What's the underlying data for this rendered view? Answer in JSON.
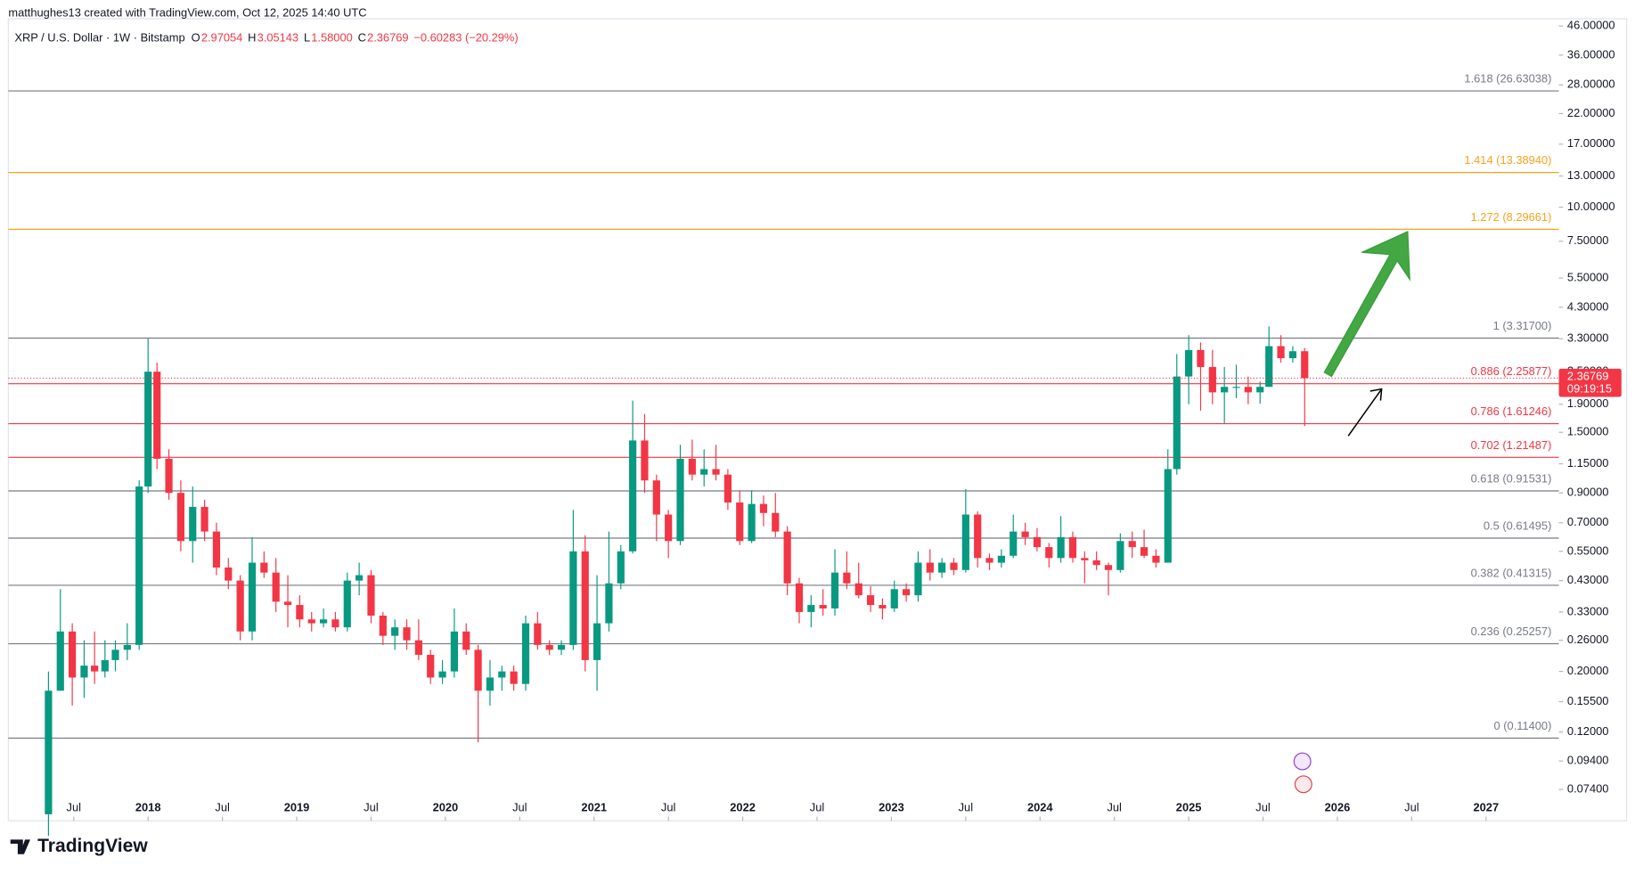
{
  "chart_data": {
    "type": "candlestick",
    "header": "matthughes13 created with TradingView.com, Oct 12, 2025 14:40 UTC",
    "symbol": "XRP / U.S. Dollar · 1W · Bitstamp",
    "ohlc": [
      {
        "key": "O",
        "text": "2.97054"
      },
      {
        "key": "H",
        "text": "3.05143"
      },
      {
        "key": "L",
        "text": "1.58000"
      },
      {
        "key": "C",
        "text": "2.36769"
      }
    ],
    "change": "−0.60283 (−20.29%)",
    "last_price": 2.36769,
    "countdown": "09:19:15",
    "branding": "TradingView",
    "up_color": "#089981",
    "down_color": "#f23645",
    "log_scale": true,
    "grid": false,
    "xlim": [
      2017.06,
      2027.49
    ],
    "ylim": [
      0.0568,
      48.9
    ],
    "xticks": [
      {
        "value": 2017.5,
        "label": "Jul"
      },
      2018,
      {
        "value": 2018.5,
        "label": "Jul"
      },
      2019,
      {
        "value": 2019.5,
        "label": "Jul"
      },
      2020,
      {
        "value": 2020.5,
        "label": "Jul"
      },
      2021,
      {
        "value": 2021.5,
        "label": "Jul"
      },
      2022,
      {
        "value": 2022.5,
        "label": "Jul"
      },
      2023,
      {
        "value": 2023.5,
        "label": "Jul"
      },
      2024,
      {
        "value": 2024.5,
        "label": "Jul"
      },
      2025,
      {
        "value": 2025.5,
        "label": "Jul"
      },
      2026,
      {
        "value": 2026.5,
        "label": "Jul"
      },
      2027
    ],
    "yticks": [
      {
        "value": 46,
        "label": "46.00000"
      },
      {
        "value": 36,
        "label": "36.00000"
      },
      {
        "value": 28,
        "label": "28.00000"
      },
      {
        "value": 22,
        "label": "22.00000"
      },
      {
        "value": 17,
        "label": "17.00000"
      },
      {
        "value": 13,
        "label": "13.00000"
      },
      {
        "value": 10,
        "label": "10.00000"
      },
      {
        "value": 7.5,
        "label": "7.50000"
      },
      {
        "value": 5.5,
        "label": "5.50000"
      },
      {
        "value": 4.3,
        "label": "4.30000"
      },
      {
        "value": 3.3,
        "label": "3.30000"
      },
      {
        "value": 2.5,
        "label": "2.50000"
      },
      {
        "value": 1.9,
        "label": "1.90000"
      },
      {
        "value": 1.5,
        "label": "1.50000"
      },
      {
        "value": 1.15,
        "label": "1.15000"
      },
      {
        "value": 0.9,
        "label": "0.90000"
      },
      {
        "value": 0.7,
        "label": "0.70000"
      },
      {
        "value": 0.55,
        "label": "0.55000"
      },
      {
        "value": 0.43,
        "label": "0.43000"
      },
      {
        "value": 0.33,
        "label": "0.33000"
      },
      {
        "value": 0.26,
        "label": "0.26000"
      },
      {
        "value": 0.2,
        "label": "0.20000"
      },
      {
        "value": 0.155,
        "label": "0.15500"
      },
      {
        "value": 0.12,
        "label": "0.12000"
      },
      {
        "value": 0.094,
        "label": "0.09400"
      },
      {
        "value": 0.074,
        "label": "0.07400"
      }
    ],
    "levels": [
      {
        "label": "1.618 (26.63038)",
        "value": 26.63038,
        "color": "#787b86"
      },
      {
        "label": "1.414 (13.38940)",
        "value": 13.3894,
        "color": "#f7a21b"
      },
      {
        "label": "1.272 (8.29661)",
        "value": 8.29661,
        "color": "#f7a21b"
      },
      {
        "label": "1 (3.31700)",
        "value": 3.317,
        "color": "#787b86"
      },
      {
        "label": "0.886 (2.25877)",
        "value": 2.25877,
        "color": "#f23645"
      },
      {
        "label": "0.786 (1.61246)",
        "value": 1.61246,
        "color": "#f23645"
      },
      {
        "label": "0.702 (1.21487)",
        "value": 1.21487,
        "color": "#f23645"
      },
      {
        "label": "0.618 (0.91531)",
        "value": 0.91531,
        "color": "#787b86"
      },
      {
        "label": "0.5 (0.61495)",
        "value": 0.61495,
        "color": "#787b86"
      },
      {
        "label": "0.382 (0.41315)",
        "value": 0.41315,
        "color": "#787b86"
      },
      {
        "label": "0.236 (0.25257)",
        "value": 0.25257,
        "color": "#787b86"
      },
      {
        "label": "0 (0.11400)",
        "value": 0.114,
        "color": "#787b86"
      }
    ],
    "candles": [
      {
        "x": 2017.33,
        "open": 0.06,
        "high": 0.2,
        "low": 0.05,
        "close": 0.17
      },
      {
        "x": 2017.41,
        "open": 0.17,
        "high": 0.4,
        "low": 0.17,
        "close": 0.28
      },
      {
        "x": 2017.49,
        "open": 0.28,
        "high": 0.3,
        "low": 0.15,
        "close": 0.19
      },
      {
        "x": 2017.57,
        "open": 0.19,
        "high": 0.26,
        "low": 0.16,
        "close": 0.21
      },
      {
        "x": 2017.64,
        "open": 0.21,
        "high": 0.28,
        "low": 0.18,
        "close": 0.2
      },
      {
        "x": 2017.71,
        "open": 0.2,
        "high": 0.26,
        "low": 0.19,
        "close": 0.22
      },
      {
        "x": 2017.78,
        "open": 0.22,
        "high": 0.26,
        "low": 0.2,
        "close": 0.24
      },
      {
        "x": 2017.86,
        "open": 0.24,
        "high": 0.3,
        "low": 0.22,
        "close": 0.25
      },
      {
        "x": 2017.94,
        "open": 0.25,
        "high": 1.0,
        "low": 0.24,
        "close": 0.95
      },
      {
        "x": 2018.0,
        "open": 0.95,
        "high": 3.3,
        "low": 0.9,
        "close": 2.5
      },
      {
        "x": 2018.06,
        "open": 2.5,
        "high": 2.7,
        "low": 1.1,
        "close": 1.2
      },
      {
        "x": 2018.14,
        "open": 1.2,
        "high": 1.3,
        "low": 0.85,
        "close": 0.9
      },
      {
        "x": 2018.22,
        "open": 0.9,
        "high": 1.0,
        "low": 0.55,
        "close": 0.6
      },
      {
        "x": 2018.3,
        "open": 0.6,
        "high": 0.95,
        "low": 0.5,
        "close": 0.8
      },
      {
        "x": 2018.38,
        "open": 0.8,
        "high": 0.85,
        "low": 0.6,
        "close": 0.65
      },
      {
        "x": 2018.46,
        "open": 0.65,
        "high": 0.7,
        "low": 0.45,
        "close": 0.48
      },
      {
        "x": 2018.54,
        "open": 0.48,
        "high": 0.52,
        "low": 0.4,
        "close": 0.43
      },
      {
        "x": 2018.62,
        "open": 0.43,
        "high": 0.45,
        "low": 0.26,
        "close": 0.28
      },
      {
        "x": 2018.7,
        "open": 0.28,
        "high": 0.62,
        "low": 0.26,
        "close": 0.5
      },
      {
        "x": 2018.78,
        "open": 0.5,
        "high": 0.55,
        "low": 0.44,
        "close": 0.46
      },
      {
        "x": 2018.86,
        "open": 0.46,
        "high": 0.52,
        "low": 0.33,
        "close": 0.36
      },
      {
        "x": 2018.94,
        "open": 0.36,
        "high": 0.45,
        "low": 0.29,
        "close": 0.35
      },
      {
        "x": 2019.02,
        "open": 0.35,
        "high": 0.38,
        "low": 0.29,
        "close": 0.31
      },
      {
        "x": 2019.1,
        "open": 0.31,
        "high": 0.33,
        "low": 0.28,
        "close": 0.3
      },
      {
        "x": 2019.18,
        "open": 0.3,
        "high": 0.34,
        "low": 0.29,
        "close": 0.31
      },
      {
        "x": 2019.26,
        "open": 0.31,
        "high": 0.33,
        "low": 0.28,
        "close": 0.29
      },
      {
        "x": 2019.34,
        "open": 0.29,
        "high": 0.46,
        "low": 0.28,
        "close": 0.43
      },
      {
        "x": 2019.42,
        "open": 0.43,
        "high": 0.5,
        "low": 0.38,
        "close": 0.45
      },
      {
        "x": 2019.5,
        "open": 0.45,
        "high": 0.47,
        "low": 0.3,
        "close": 0.32
      },
      {
        "x": 2019.58,
        "open": 0.32,
        "high": 0.33,
        "low": 0.25,
        "close": 0.27
      },
      {
        "x": 2019.66,
        "open": 0.27,
        "high": 0.31,
        "low": 0.24,
        "close": 0.29
      },
      {
        "x": 2019.74,
        "open": 0.29,
        "high": 0.31,
        "low": 0.24,
        "close": 0.26
      },
      {
        "x": 2019.82,
        "open": 0.26,
        "high": 0.31,
        "low": 0.22,
        "close": 0.23
      },
      {
        "x": 2019.9,
        "open": 0.23,
        "high": 0.24,
        "low": 0.18,
        "close": 0.19
      },
      {
        "x": 2019.98,
        "open": 0.19,
        "high": 0.22,
        "low": 0.18,
        "close": 0.2
      },
      {
        "x": 2020.06,
        "open": 0.2,
        "high": 0.34,
        "low": 0.19,
        "close": 0.28
      },
      {
        "x": 2020.14,
        "open": 0.28,
        "high": 0.3,
        "low": 0.23,
        "close": 0.24
      },
      {
        "x": 2020.22,
        "open": 0.24,
        "high": 0.25,
        "low": 0.11,
        "close": 0.17
      },
      {
        "x": 2020.3,
        "open": 0.17,
        "high": 0.22,
        "low": 0.15,
        "close": 0.19
      },
      {
        "x": 2020.38,
        "open": 0.19,
        "high": 0.21,
        "low": 0.17,
        "close": 0.2
      },
      {
        "x": 2020.46,
        "open": 0.2,
        "high": 0.21,
        "low": 0.17,
        "close": 0.18
      },
      {
        "x": 2020.54,
        "open": 0.18,
        "high": 0.32,
        "low": 0.17,
        "close": 0.3
      },
      {
        "x": 2020.62,
        "open": 0.3,
        "high": 0.33,
        "low": 0.24,
        "close": 0.25
      },
      {
        "x": 2020.7,
        "open": 0.25,
        "high": 0.26,
        "low": 0.23,
        "close": 0.24
      },
      {
        "x": 2020.78,
        "open": 0.24,
        "high": 0.26,
        "low": 0.23,
        "close": 0.25
      },
      {
        "x": 2020.86,
        "open": 0.25,
        "high": 0.78,
        "low": 0.24,
        "close": 0.55
      },
      {
        "x": 2020.94,
        "open": 0.55,
        "high": 0.63,
        "low": 0.2,
        "close": 0.22
      },
      {
        "x": 2021.02,
        "open": 0.22,
        "high": 0.45,
        "low": 0.17,
        "close": 0.3
      },
      {
        "x": 2021.1,
        "open": 0.3,
        "high": 0.65,
        "low": 0.28,
        "close": 0.42
      },
      {
        "x": 2021.18,
        "open": 0.42,
        "high": 0.58,
        "low": 0.4,
        "close": 0.55
      },
      {
        "x": 2021.26,
        "open": 0.55,
        "high": 1.96,
        "low": 0.54,
        "close": 1.4
      },
      {
        "x": 2021.34,
        "open": 1.4,
        "high": 1.75,
        "low": 0.9,
        "close": 1.0
      },
      {
        "x": 2021.42,
        "open": 1.0,
        "high": 1.05,
        "low": 0.6,
        "close": 0.75
      },
      {
        "x": 2021.5,
        "open": 0.75,
        "high": 0.78,
        "low": 0.52,
        "close": 0.6
      },
      {
        "x": 2021.58,
        "open": 0.6,
        "high": 1.35,
        "low": 0.58,
        "close": 1.2
      },
      {
        "x": 2021.66,
        "open": 1.2,
        "high": 1.41,
        "low": 1.0,
        "close": 1.05
      },
      {
        "x": 2021.74,
        "open": 1.05,
        "high": 1.3,
        "low": 0.95,
        "close": 1.1
      },
      {
        "x": 2021.82,
        "open": 1.1,
        "high": 1.35,
        "low": 1.0,
        "close": 1.05
      },
      {
        "x": 2021.9,
        "open": 1.05,
        "high": 1.1,
        "low": 0.78,
        "close": 0.83
      },
      {
        "x": 2021.98,
        "open": 0.83,
        "high": 0.92,
        "low": 0.58,
        "close": 0.6
      },
      {
        "x": 2022.06,
        "open": 0.6,
        "high": 0.92,
        "low": 0.59,
        "close": 0.82
      },
      {
        "x": 2022.14,
        "open": 0.82,
        "high": 0.88,
        "low": 0.68,
        "close": 0.76
      },
      {
        "x": 2022.22,
        "open": 0.76,
        "high": 0.9,
        "low": 0.62,
        "close": 0.65
      },
      {
        "x": 2022.3,
        "open": 0.65,
        "high": 0.68,
        "low": 0.38,
        "close": 0.42
      },
      {
        "x": 2022.38,
        "open": 0.42,
        "high": 0.44,
        "low": 0.3,
        "close": 0.33
      },
      {
        "x": 2022.46,
        "open": 0.33,
        "high": 0.38,
        "low": 0.29,
        "close": 0.35
      },
      {
        "x": 2022.54,
        "open": 0.35,
        "high": 0.4,
        "low": 0.32,
        "close": 0.34
      },
      {
        "x": 2022.62,
        "open": 0.34,
        "high": 0.56,
        "low": 0.32,
        "close": 0.46
      },
      {
        "x": 2022.7,
        "open": 0.46,
        "high": 0.55,
        "low": 0.4,
        "close": 0.42
      },
      {
        "x": 2022.78,
        "open": 0.42,
        "high": 0.5,
        "low": 0.37,
        "close": 0.38
      },
      {
        "x": 2022.86,
        "open": 0.38,
        "high": 0.41,
        "low": 0.33,
        "close": 0.35
      },
      {
        "x": 2022.94,
        "open": 0.35,
        "high": 0.37,
        "low": 0.31,
        "close": 0.34
      },
      {
        "x": 2023.02,
        "open": 0.34,
        "high": 0.43,
        "low": 0.33,
        "close": 0.4
      },
      {
        "x": 2023.1,
        "open": 0.4,
        "high": 0.42,
        "low": 0.36,
        "close": 0.38
      },
      {
        "x": 2023.18,
        "open": 0.38,
        "high": 0.55,
        "low": 0.36,
        "close": 0.5
      },
      {
        "x": 2023.26,
        "open": 0.5,
        "high": 0.56,
        "low": 0.43,
        "close": 0.46
      },
      {
        "x": 2023.34,
        "open": 0.46,
        "high": 0.52,
        "low": 0.44,
        "close": 0.5
      },
      {
        "x": 2023.42,
        "open": 0.5,
        "high": 0.52,
        "low": 0.45,
        "close": 0.47
      },
      {
        "x": 2023.5,
        "open": 0.47,
        "high": 0.93,
        "low": 0.46,
        "close": 0.75
      },
      {
        "x": 2023.58,
        "open": 0.75,
        "high": 0.77,
        "low": 0.48,
        "close": 0.52
      },
      {
        "x": 2023.66,
        "open": 0.52,
        "high": 0.54,
        "low": 0.47,
        "close": 0.5
      },
      {
        "x": 2023.74,
        "open": 0.5,
        "high": 0.56,
        "low": 0.48,
        "close": 0.53
      },
      {
        "x": 2023.82,
        "open": 0.53,
        "high": 0.75,
        "low": 0.52,
        "close": 0.65
      },
      {
        "x": 2023.9,
        "open": 0.65,
        "high": 0.7,
        "low": 0.58,
        "close": 0.62
      },
      {
        "x": 2023.98,
        "open": 0.62,
        "high": 0.67,
        "low": 0.55,
        "close": 0.57
      },
      {
        "x": 2024.06,
        "open": 0.57,
        "high": 0.59,
        "low": 0.48,
        "close": 0.52
      },
      {
        "x": 2024.14,
        "open": 0.52,
        "high": 0.74,
        "low": 0.5,
        "close": 0.62
      },
      {
        "x": 2024.22,
        "open": 0.62,
        "high": 0.65,
        "low": 0.5,
        "close": 0.52
      },
      {
        "x": 2024.3,
        "open": 0.52,
        "high": 0.55,
        "low": 0.42,
        "close": 0.51
      },
      {
        "x": 2024.38,
        "open": 0.51,
        "high": 0.55,
        "low": 0.47,
        "close": 0.49
      },
      {
        "x": 2024.46,
        "open": 0.49,
        "high": 0.5,
        "low": 0.38,
        "close": 0.47
      },
      {
        "x": 2024.54,
        "open": 0.47,
        "high": 0.64,
        "low": 0.46,
        "close": 0.6
      },
      {
        "x": 2024.62,
        "open": 0.6,
        "high": 0.65,
        "low": 0.52,
        "close": 0.57
      },
      {
        "x": 2024.7,
        "open": 0.57,
        "high": 0.66,
        "low": 0.52,
        "close": 0.53
      },
      {
        "x": 2024.78,
        "open": 0.53,
        "high": 0.56,
        "low": 0.48,
        "close": 0.5
      },
      {
        "x": 2024.86,
        "open": 0.5,
        "high": 1.3,
        "low": 0.5,
        "close": 1.1
      },
      {
        "x": 2024.92,
        "open": 1.1,
        "high": 2.9,
        "low": 1.05,
        "close": 2.4
      },
      {
        "x": 2025.0,
        "open": 2.4,
        "high": 3.4,
        "low": 1.9,
        "close": 3.0
      },
      {
        "x": 2025.08,
        "open": 3.0,
        "high": 3.2,
        "low": 1.8,
        "close": 2.6
      },
      {
        "x": 2025.16,
        "open": 2.6,
        "high": 3.0,
        "low": 1.9,
        "close": 2.1
      },
      {
        "x": 2025.24,
        "open": 2.1,
        "high": 2.6,
        "low": 1.62,
        "close": 2.2
      },
      {
        "x": 2025.32,
        "open": 2.2,
        "high": 2.65,
        "low": 2.0,
        "close": 2.2
      },
      {
        "x": 2025.4,
        "open": 2.2,
        "high": 2.4,
        "low": 1.9,
        "close": 2.1
      },
      {
        "x": 2025.48,
        "open": 2.1,
        "high": 2.3,
        "low": 1.91,
        "close": 2.2
      },
      {
        "x": 2025.54,
        "open": 2.2,
        "high": 3.66,
        "low": 2.2,
        "close": 3.1
      },
      {
        "x": 2025.62,
        "open": 3.1,
        "high": 3.4,
        "low": 2.7,
        "close": 2.8
      },
      {
        "x": 2025.7,
        "open": 2.8,
        "high": 3.1,
        "low": 2.7,
        "close": 2.97
      },
      {
        "x": 2025.78,
        "open": 2.97054,
        "high": 3.05143,
        "low": 1.58,
        "close": 2.36769
      }
    ]
  }
}
